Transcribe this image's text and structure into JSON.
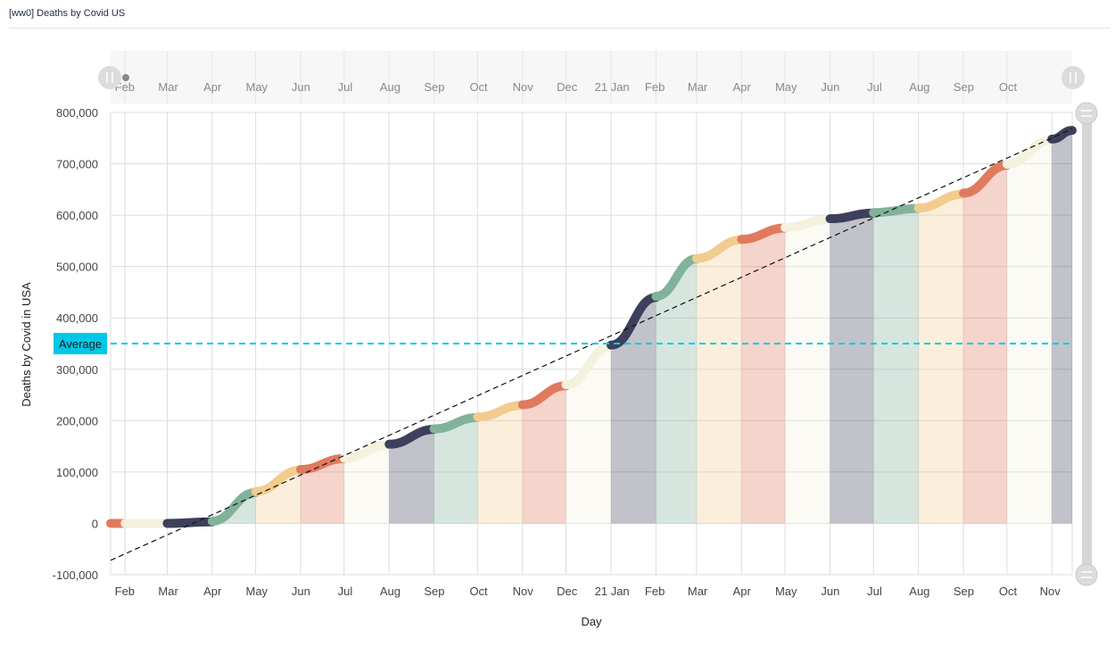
{
  "widget": {
    "title": "[ww0] Deaths by Covid US"
  },
  "chart_data": {
    "type": "area",
    "title": "",
    "xlabel": "Day",
    "ylabel": "Deaths by Covid in USA",
    "ylim": [
      -100000,
      800000
    ],
    "y_ticks": [
      800000,
      700000,
      600000,
      500000,
      400000,
      300000,
      200000,
      100000,
      0,
      -100000
    ],
    "y_tick_labels": [
      "800,000",
      "700,000",
      "600,000",
      "500,000",
      "400,000",
      "300,000",
      "200,000",
      "100,000",
      "0",
      "-100,000"
    ],
    "x_range": [
      "2020-01-22",
      "2021-11-15"
    ],
    "x_tick_labels": [
      "Feb",
      "Mar",
      "Apr",
      "May",
      "Jun",
      "Jul",
      "Aug",
      "Sep",
      "Oct",
      "Nov",
      "Dec",
      "21 Jan",
      "Feb",
      "Mar",
      "Apr",
      "May",
      "Jun",
      "Jul",
      "Aug",
      "Sep",
      "Oct",
      "Nov"
    ],
    "grid": true,
    "series": [
      {
        "name": "Deaths by Covid in USA",
        "monthly": [
          {
            "month": "2020-01",
            "start": 0,
            "end": 0,
            "color": "#e07a5f"
          },
          {
            "month": "2020-02",
            "start": 0,
            "end": 0,
            "color": "#f4f1de"
          },
          {
            "month": "2020-03",
            "start": 0,
            "end": 3000,
            "color": "#3d405b"
          },
          {
            "month": "2020-04",
            "start": 4000,
            "end": 60000,
            "color": "#81b29a"
          },
          {
            "month": "2020-05",
            "start": 62000,
            "end": 104000,
            "color": "#f2cc8f"
          },
          {
            "month": "2020-06",
            "start": 105000,
            "end": 126000,
            "color": "#e07a5f"
          },
          {
            "month": "2020-07",
            "start": 127000,
            "end": 153000,
            "color": "#f4f1de"
          },
          {
            "month": "2020-08",
            "start": 154000,
            "end": 183000,
            "color": "#3d405b"
          },
          {
            "month": "2020-09",
            "start": 184000,
            "end": 206000,
            "color": "#81b29a"
          },
          {
            "month": "2020-10",
            "start": 207000,
            "end": 230000,
            "color": "#f2cc8f"
          },
          {
            "month": "2020-11",
            "start": 231000,
            "end": 268000,
            "color": "#e07a5f"
          },
          {
            "month": "2020-12",
            "start": 270000,
            "end": 345000,
            "color": "#f4f1de"
          },
          {
            "month": "2021-01",
            "start": 347000,
            "end": 440000,
            "color": "#3d405b"
          },
          {
            "month": "2021-02",
            "start": 442000,
            "end": 515000,
            "color": "#81b29a"
          },
          {
            "month": "2021-03",
            "start": 516000,
            "end": 552000,
            "color": "#f2cc8f"
          },
          {
            "month": "2021-04",
            "start": 553000,
            "end": 575000,
            "color": "#e07a5f"
          },
          {
            "month": "2021-05",
            "start": 576000,
            "end": 592000,
            "color": "#f4f1de"
          },
          {
            "month": "2021-06",
            "start": 593000,
            "end": 604000,
            "color": "#3d405b"
          },
          {
            "month": "2021-07",
            "start": 605000,
            "end": 613000,
            "color": "#81b29a"
          },
          {
            "month": "2021-08",
            "start": 614000,
            "end": 641000,
            "color": "#f2cc8f"
          },
          {
            "month": "2021-09",
            "start": 643000,
            "end": 697000,
            "color": "#e07a5f"
          },
          {
            "month": "2021-10",
            "start": 699000,
            "end": 747000,
            "color": "#f4f1de"
          },
          {
            "month": "2021-11",
            "start": 748000,
            "end": 765000,
            "color": "#3d405b"
          }
        ]
      }
    ],
    "trend_line": {
      "style": "dashed",
      "color": "#111111",
      "start": [
        "2020-01-22",
        -72000
      ],
      "end": [
        "2021-11-15",
        768000
      ]
    },
    "average_line": {
      "label": "Average",
      "value": 350000,
      "color": "#00c8e6"
    },
    "navigator": {
      "present": true,
      "tick_labels": [
        "Feb",
        "Mar",
        "Apr",
        "May",
        "Jun",
        "Jul",
        "Aug",
        "Sep",
        "Oct",
        "Nov",
        "Dec",
        "21 Jan",
        "Feb",
        "Mar",
        "Apr",
        "May",
        "Jun",
        "Jul",
        "Aug",
        "Sep",
        "Oct"
      ]
    },
    "vertical_scrollbar": {
      "present": true
    }
  }
}
